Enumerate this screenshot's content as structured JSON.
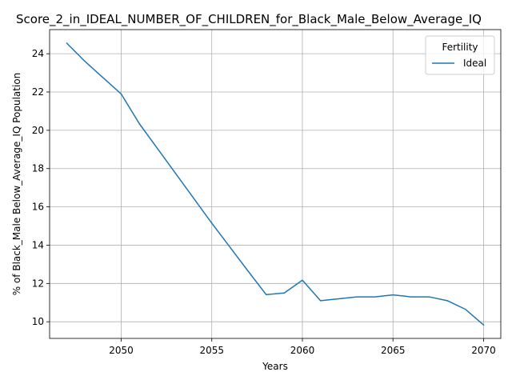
{
  "chart_data": {
    "type": "line",
    "title": "Score_2_in_IDEAL_NUMBER_OF_CHILDREN_for_Black_Male_Below_Average_IQ",
    "xlabel": "Years",
    "ylabel": "% of Black_Male Below_Average_IQ Population",
    "xlim": [
      2046.05,
      2070.95
    ],
    "ylim": [
      9.13,
      25.26
    ],
    "x_ticks": [
      2050,
      2055,
      2060,
      2065,
      2070
    ],
    "y_ticks": [
      10,
      12,
      14,
      16,
      18,
      20,
      22,
      24
    ],
    "grid": true,
    "legend": {
      "title": "Fertility",
      "placement": "top-right"
    },
    "series": [
      {
        "name": "Ideal",
        "color": "#1f77b4",
        "x": [
          2047,
          2048,
          2049,
          2050,
          2051,
          2052,
          2053,
          2054,
          2055,
          2056,
          2057,
          2058,
          2059,
          2060,
          2061,
          2062,
          2063,
          2064,
          2065,
          2066,
          2067,
          2068,
          2069,
          2070
        ],
        "y": [
          24.55,
          23.6,
          22.75,
          21.9,
          20.35,
          19.05,
          17.75,
          16.45,
          15.15,
          13.9,
          12.65,
          11.42,
          11.5,
          12.17,
          11.1,
          11.2,
          11.3,
          11.3,
          11.4,
          11.3,
          11.3,
          11.1,
          10.65,
          9.83
        ]
      }
    ]
  }
}
